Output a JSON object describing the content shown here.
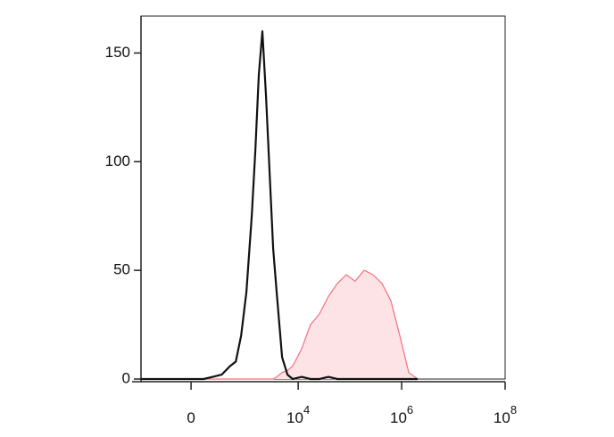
{
  "chart_data": {
    "type": "histogram",
    "xscale": "biexponential",
    "x": [
      -780,
      0,
      100,
      190,
      310,
      470,
      610,
      780,
      990,
      1260,
      1480,
      1730,
      2030,
      2390,
      2800,
      3280,
      3840,
      4880,
      6190,
      7850,
      11700,
      17300,
      25800,
      38400,
      57200,
      85000,
      126000,
      188000,
      279000,
      416000,
      619000,
      920000,
      1370000,
      2040000
    ],
    "series": [
      {
        "color": "#111111",
        "fill": "none",
        "values": [
          0,
          0,
          0,
          1,
          2,
          6,
          8,
          20,
          40,
          75,
          105,
          140,
          160,
          130,
          95,
          60,
          40,
          10,
          2,
          0,
          1,
          0,
          0,
          1,
          0,
          0,
          0,
          0,
          0,
          0,
          0,
          0,
          0,
          0
        ]
      },
      {
        "color": "#f07080",
        "fill": "#fde3e5",
        "values": [
          0,
          0,
          0,
          0,
          0,
          0,
          0,
          0,
          0,
          0,
          0,
          0,
          0,
          0,
          0,
          0,
          1,
          3,
          4,
          6,
          14,
          25,
          30,
          38,
          44,
          48,
          45,
          50,
          48,
          44,
          36,
          20,
          3,
          0
        ]
      }
    ],
    "xlim": [
      -780,
      100000000
    ],
    "xticks": [
      {
        "value": 0,
        "label": "0"
      },
      {
        "value": 10000,
        "label": "10",
        "superscript": "4"
      },
      {
        "value": 1000000,
        "label": "10",
        "superscript": "6"
      },
      {
        "value": 100000000,
        "label": "10",
        "superscript": "8"
      }
    ],
    "ylim": [
      0,
      167
    ],
    "yticks": [
      0,
      50,
      100,
      150
    ]
  }
}
